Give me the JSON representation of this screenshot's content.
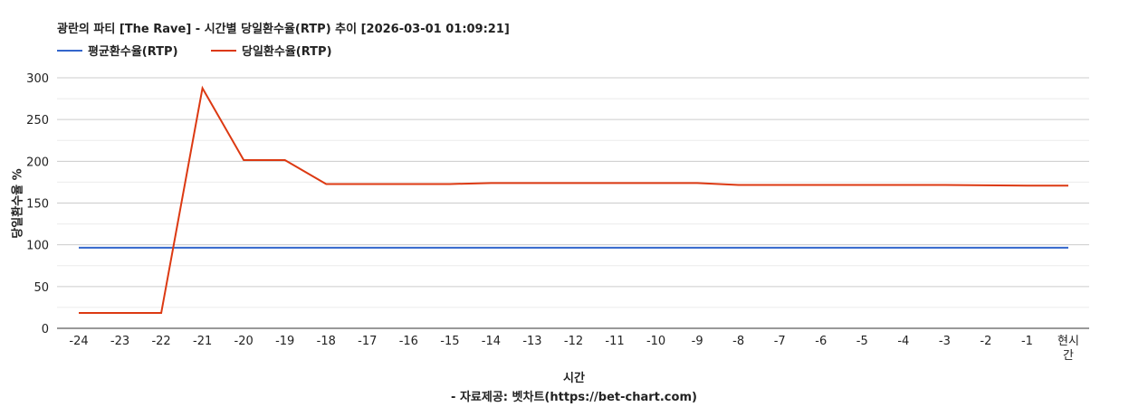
{
  "chart_data": {
    "type": "line",
    "title": "광란의 파티 [The Rave] - 시간별 당일환수율(RTP) 추이 [2026-03-01 01:09:21]",
    "xlabel": "시간",
    "ylabel": "당일환수율 %",
    "source": "- 자료제공: 벳차트(https://bet-chart.com)",
    "categories": [
      "-24",
      "-23",
      "-22",
      "-21",
      "-20",
      "-19",
      "-18",
      "-17",
      "-16",
      "-15",
      "-14",
      "-13",
      "-12",
      "-11",
      "-10",
      "-9",
      "-8",
      "-7",
      "-6",
      "-5",
      "-4",
      "-3",
      "-2",
      "-1",
      "현시간"
    ],
    "ylim": [
      0,
      300
    ],
    "yticks": [
      0,
      50,
      100,
      150,
      200,
      250,
      300
    ],
    "grid": true,
    "legend": "top-left",
    "series": [
      {
        "name": "평균환수율(RTP)",
        "color": "#3366cc",
        "values": [
          96.5,
          96.5,
          96.5,
          96.5,
          96.5,
          96.5,
          96.5,
          96.5,
          96.5,
          96.5,
          96.5,
          96.5,
          96.5,
          96.5,
          96.5,
          96.5,
          96.5,
          96.5,
          96.5,
          96.5,
          96.5,
          96.5,
          96.5,
          96.5,
          96.5
        ]
      },
      {
        "name": "당일환수율(RTP)",
        "color": "#dc3912",
        "values": [
          18.4,
          18.4,
          18.4,
          287.6,
          201.5,
          201.5,
          172.8,
          172.8,
          172.8,
          172.8,
          173.9,
          173.9,
          173.9,
          173.9,
          173.9,
          173.9,
          171.7,
          171.7,
          171.7,
          171.7,
          171.7,
          171.7,
          171.2,
          170.9,
          170.9
        ]
      }
    ]
  }
}
